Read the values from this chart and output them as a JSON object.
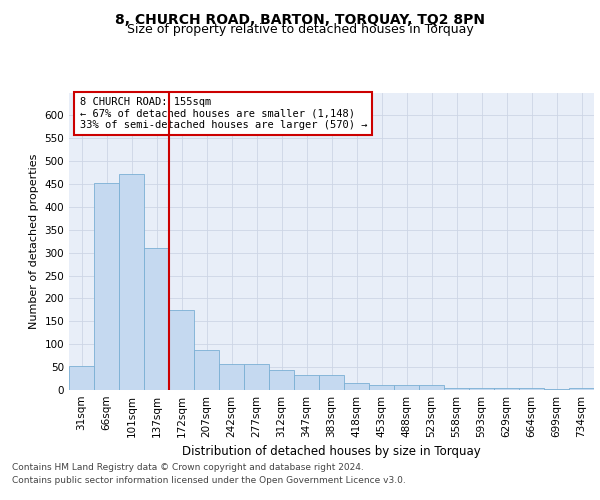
{
  "title": "8, CHURCH ROAD, BARTON, TORQUAY, TQ2 8PN",
  "subtitle": "Size of property relative to detached houses in Torquay",
  "xlabel": "Distribution of detached houses by size in Torquay",
  "ylabel": "Number of detached properties",
  "categories": [
    "31sqm",
    "66sqm",
    "101sqm",
    "137sqm",
    "172sqm",
    "207sqm",
    "242sqm",
    "277sqm",
    "312sqm",
    "347sqm",
    "383sqm",
    "418sqm",
    "453sqm",
    "488sqm",
    "523sqm",
    "558sqm",
    "593sqm",
    "629sqm",
    "664sqm",
    "699sqm",
    "734sqm"
  ],
  "values": [
    53,
    452,
    471,
    311,
    175,
    88,
    57,
    57,
    43,
    32,
    32,
    15,
    10,
    10,
    10,
    5,
    5,
    5,
    5,
    3,
    5
  ],
  "bar_color": "#c5d9f0",
  "bar_edge_color": "#7aafd4",
  "vline_x": 3.5,
  "vline_color": "#cc0000",
  "annotation_text": "8 CHURCH ROAD: 155sqm\n← 67% of detached houses are smaller (1,148)\n33% of semi-detached houses are larger (570) →",
  "annotation_box_color": "#ffffff",
  "annotation_box_edge": "#cc0000",
  "ylim": [
    0,
    650
  ],
  "yticks": [
    0,
    50,
    100,
    150,
    200,
    250,
    300,
    350,
    400,
    450,
    500,
    550,
    600
  ],
  "grid_color": "#cdd5e5",
  "bg_color": "#e8eef8",
  "footer1": "Contains HM Land Registry data © Crown copyright and database right 2024.",
  "footer2": "Contains public sector information licensed under the Open Government Licence v3.0.",
  "title_fontsize": 10,
  "subtitle_fontsize": 9,
  "xlabel_fontsize": 8.5,
  "ylabel_fontsize": 8,
  "tick_fontsize": 7.5,
  "footer_fontsize": 6.5
}
